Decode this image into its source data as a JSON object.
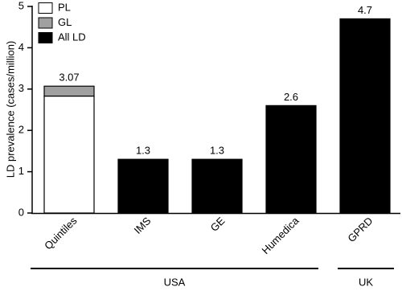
{
  "chart_data": {
    "type": "bar",
    "stacked": true,
    "y_label": "LD prevalence (cases/million)",
    "categories": [
      "Quintiles",
      "IMS",
      "GE",
      "Humedica",
      "GPRD"
    ],
    "category_groups": [
      "USA",
      "USA",
      "USA",
      "USA",
      "UK"
    ],
    "series": [
      {
        "name": "PL",
        "color": "#ffffff",
        "values": [
          2.83,
          null,
          null,
          null,
          null
        ]
      },
      {
        "name": "GL",
        "color": "#a0a0a0",
        "values": [
          0.24,
          null,
          null,
          null,
          null
        ]
      },
      {
        "name": "All LD",
        "color": "#000000",
        "values": [
          null,
          1.3,
          1.3,
          2.6,
          4.7
        ]
      }
    ],
    "total_labels": [
      3.07,
      1.3,
      1.3,
      2.6,
      4.7
    ],
    "ylim": [
      0,
      5
    ],
    "yticks": [
      0,
      1,
      2,
      3,
      4,
      5
    ],
    "legend": "top-left"
  }
}
